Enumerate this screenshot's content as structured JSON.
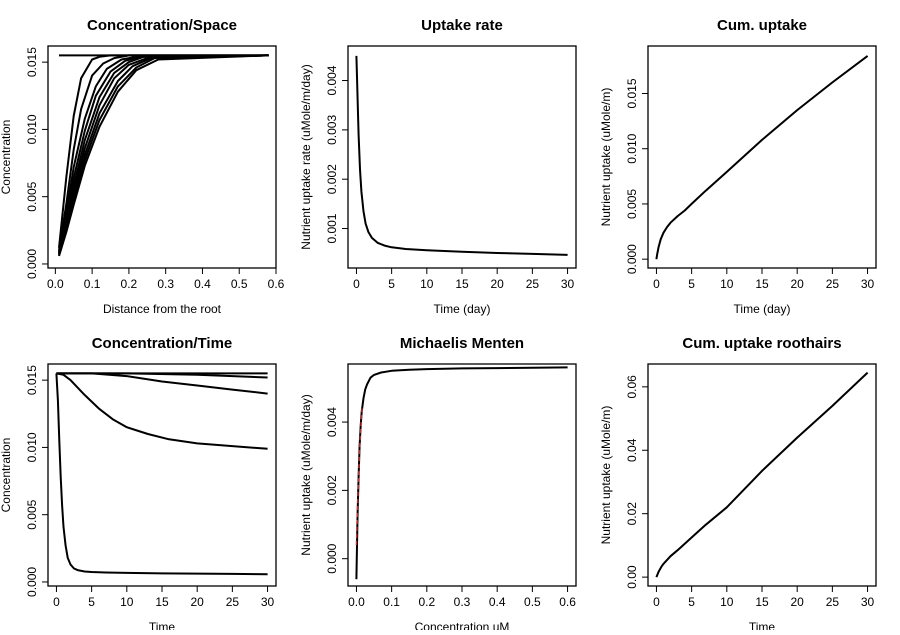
{
  "chart_data": [
    {
      "id": "p1",
      "type": "line",
      "title": "Concentration/Space",
      "xlabel": "Distance from the root",
      "ylabel": "Concentration",
      "xlim": [
        -0.02,
        0.6
      ],
      "ylim": [
        -0.0003,
        0.0162
      ],
      "xticks": [
        0.0,
        0.1,
        0.2,
        0.3,
        0.4,
        0.5,
        0.6
      ],
      "xtick_labels": [
        "0.0",
        "0.1",
        "0.2",
        "0.3",
        "0.4",
        "0.5",
        "0.6"
      ],
      "yticks": [
        0.0,
        0.005,
        0.01,
        0.015
      ],
      "ytick_labels": [
        "0.000",
        "0.005",
        "0.010",
        "0.015"
      ],
      "series": [
        {
          "x": [
            0.01,
            0.58
          ],
          "y": [
            0.0155,
            0.0155
          ]
        },
        {
          "x": [
            0.01,
            0.03,
            0.05,
            0.07,
            0.1,
            0.12,
            0.15,
            0.58
          ],
          "y": [
            0.0012,
            0.0065,
            0.011,
            0.0138,
            0.0152,
            0.0154,
            0.0155,
            0.0155
          ]
        },
        {
          "x": [
            0.01,
            0.03,
            0.05,
            0.07,
            0.1,
            0.13,
            0.16,
            0.2,
            0.58
          ],
          "y": [
            0.001,
            0.0045,
            0.0085,
            0.0115,
            0.014,
            0.0149,
            0.0153,
            0.0155,
            0.0155
          ]
        },
        {
          "x": [
            0.01,
            0.03,
            0.05,
            0.08,
            0.11,
            0.14,
            0.18,
            0.22,
            0.58
          ],
          "y": [
            0.0009,
            0.0038,
            0.0072,
            0.0108,
            0.0132,
            0.0145,
            0.0152,
            0.0154,
            0.0155
          ]
        },
        {
          "x": [
            0.01,
            0.03,
            0.05,
            0.08,
            0.11,
            0.15,
            0.19,
            0.23,
            0.58
          ],
          "y": [
            0.0008,
            0.0034,
            0.0064,
            0.0099,
            0.0125,
            0.0143,
            0.0151,
            0.0154,
            0.0155
          ]
        },
        {
          "x": [
            0.01,
            0.03,
            0.05,
            0.08,
            0.12,
            0.16,
            0.2,
            0.24,
            0.58
          ],
          "y": [
            0.0008,
            0.0031,
            0.0058,
            0.0092,
            0.0124,
            0.0142,
            0.015,
            0.0154,
            0.0155
          ]
        },
        {
          "x": [
            0.01,
            0.03,
            0.05,
            0.08,
            0.12,
            0.16,
            0.2,
            0.25,
            0.58
          ],
          "y": [
            0.0007,
            0.0029,
            0.0054,
            0.0086,
            0.0118,
            0.0138,
            0.0148,
            0.0153,
            0.0155
          ]
        },
        {
          "x": [
            0.01,
            0.03,
            0.05,
            0.08,
            0.12,
            0.17,
            0.21,
            0.26,
            0.58
          ],
          "y": [
            0.0007,
            0.0027,
            0.005,
            0.0081,
            0.0112,
            0.0136,
            0.0147,
            0.0153,
            0.0155
          ]
        },
        {
          "x": [
            0.01,
            0.03,
            0.05,
            0.08,
            0.12,
            0.17,
            0.22,
            0.27,
            0.58
          ],
          "y": [
            0.0006,
            0.0025,
            0.0047,
            0.0077,
            0.0107,
            0.0132,
            0.0146,
            0.0153,
            0.0155
          ]
        },
        {
          "x": [
            0.01,
            0.03,
            0.05,
            0.08,
            0.12,
            0.17,
            0.22,
            0.28,
            0.58
          ],
          "y": [
            0.0006,
            0.0024,
            0.0044,
            0.0073,
            0.0102,
            0.0128,
            0.0144,
            0.0152,
            0.0155
          ]
        }
      ]
    },
    {
      "id": "p2",
      "type": "line",
      "title": "Uptake rate",
      "xlabel": "Time (day)",
      "ylabel": "Nutrient uptake rate (uMole/m/day)",
      "xlim": [
        -1.2,
        31.2
      ],
      "ylim": [
        0.0002,
        0.0047
      ],
      "xticks": [
        0,
        5,
        10,
        15,
        20,
        25,
        30
      ],
      "xtick_labels": [
        "0",
        "5",
        "10",
        "15",
        "20",
        "25",
        "30"
      ],
      "yticks": [
        0.001,
        0.002,
        0.003,
        0.004
      ],
      "ytick_labels": [
        "0.001",
        "0.002",
        "0.003",
        "0.004"
      ],
      "series": [
        {
          "x": [
            0.0,
            0.1,
            0.2,
            0.3,
            0.5,
            0.7,
            1.0,
            1.3,
            1.7,
            2.2,
            3.0,
            4.0,
            5.0,
            7.0,
            10,
            15,
            20,
            25,
            30
          ],
          "y": [
            0.0045,
            0.004,
            0.0034,
            0.0029,
            0.0022,
            0.00175,
            0.00135,
            0.0011,
            0.00093,
            0.00081,
            0.00071,
            0.000655,
            0.00062,
            0.000585,
            0.00056,
            0.00053,
            0.000505,
            0.000485,
            0.000465
          ]
        }
      ]
    },
    {
      "id": "p3",
      "type": "line",
      "title": "Cum. uptake",
      "xlabel": "Time (day)",
      "ylabel": "Nutrient uptake (uMole/m)",
      "xlim": [
        -1.2,
        31.2
      ],
      "ylim": [
        -0.0008,
        0.0193
      ],
      "xticks": [
        0,
        5,
        10,
        15,
        20,
        25,
        30
      ],
      "xtick_labels": [
        "0",
        "5",
        "10",
        "15",
        "20",
        "25",
        "30"
      ],
      "yticks": [
        0.0,
        0.005,
        0.01,
        0.015
      ],
      "ytick_labels": [
        "0.000",
        "0.005",
        "0.010",
        "0.015"
      ],
      "series": [
        {
          "x": [
            0.0,
            0.1,
            0.3,
            0.6,
            1.0,
            1.5,
            2.0,
            3.0,
            4.0,
            5.0,
            7.0,
            10,
            15,
            20,
            25,
            30
          ],
          "y": [
            0.0,
            0.0004,
            0.0011,
            0.0018,
            0.0024,
            0.0029,
            0.0033,
            0.0039,
            0.0044,
            0.005,
            0.0062,
            0.0079,
            0.0108,
            0.0135,
            0.016,
            0.0184
          ]
        }
      ]
    },
    {
      "id": "p4",
      "type": "line",
      "title": "Concentration/Time",
      "xlabel": "Time",
      "ylabel": "Concentration",
      "xlim": [
        -1.2,
        31.2
      ],
      "ylim": [
        -0.0003,
        0.0162
      ],
      "xticks": [
        0,
        5,
        10,
        15,
        20,
        25,
        30
      ],
      "xtick_labels": [
        "0",
        "5",
        "10",
        "15",
        "20",
        "25",
        "30"
      ],
      "yticks": [
        0.0,
        0.005,
        0.01,
        0.015
      ],
      "ytick_labels": [
        "0.000",
        "0.005",
        "0.010",
        "0.015"
      ],
      "series": [
        {
          "x": [
            0,
            30
          ],
          "y": [
            0.0155,
            0.0155
          ]
        },
        {
          "x": [
            0,
            10,
            20,
            30
          ],
          "y": [
            0.0155,
            0.0155,
            0.0154,
            0.0152
          ]
        },
        {
          "x": [
            0,
            5,
            10,
            15,
            20,
            25,
            30
          ],
          "y": [
            0.0155,
            0.0155,
            0.0153,
            0.0149,
            0.0146,
            0.0143,
            0.014
          ]
        },
        {
          "x": [
            0,
            1,
            2,
            4,
            6,
            8,
            10,
            13,
            16,
            20,
            25,
            30
          ],
          "y": [
            0.0155,
            0.0154,
            0.015,
            0.0139,
            0.0129,
            0.0121,
            0.0115,
            0.011,
            0.0106,
            0.0103,
            0.0101,
            0.0099
          ]
        },
        {
          "x": [
            0,
            0.2,
            0.4,
            0.6,
            0.8,
            1.0,
            1.3,
            1.6,
            2.0,
            2.5,
            3.0,
            4.0,
            5.0,
            7.0,
            10,
            15,
            20,
            25,
            30
          ],
          "y": [
            0.0155,
            0.0135,
            0.0105,
            0.0078,
            0.0057,
            0.0041,
            0.0027,
            0.0018,
            0.0013,
            0.001,
            0.00088,
            0.00078,
            0.00074,
            0.0007,
            0.00067,
            0.00064,
            0.00062,
            0.0006,
            0.00058
          ]
        }
      ]
    },
    {
      "id": "p5",
      "type": "line",
      "title": "Michaelis Menten",
      "xlabel": "Concentration uM",
      "ylabel": "Nutrient uptake (uMole/m/day)",
      "xlim": [
        -0.024,
        0.624
      ],
      "ylim": [
        -0.0008,
        0.0057
      ],
      "xticks": [
        0.0,
        0.1,
        0.2,
        0.3,
        0.4,
        0.5,
        0.6
      ],
      "xtick_labels": [
        "0.0",
        "0.1",
        "0.2",
        "0.3",
        "0.4",
        "0.5",
        "0.6"
      ],
      "yticks": [
        0.0,
        0.002,
        0.004
      ],
      "ytick_labels": [
        "0.000",
        "0.002",
        "0.004"
      ],
      "series": [
        {
          "x": [
            0.0,
            0.003,
            0.006,
            0.009,
            0.012,
            0.015,
            0.02,
            0.025,
            0.03,
            0.04,
            0.05,
            0.07,
            0.1,
            0.15,
            0.2,
            0.3,
            0.4,
            0.5,
            0.6
          ],
          "y": [
            -0.0006,
            0.0012,
            0.0024,
            0.0033,
            0.0039,
            0.0043,
            0.0047,
            0.00495,
            0.0051,
            0.0053,
            0.00538,
            0.00545,
            0.0055,
            0.00553,
            0.00555,
            0.00557,
            0.00558,
            0.00559,
            0.0056
          ],
          "color": "#000000"
        },
        {
          "x": [
            0.0,
            0.004,
            0.008,
            0.012,
            0.016
          ],
          "y": [
            0.0004,
            0.0018,
            0.003,
            0.0038,
            0.0044
          ],
          "color": "#d62728",
          "dashed": true
        }
      ]
    },
    {
      "id": "p6",
      "type": "line",
      "title": "Cum. uptake roothairs",
      "xlabel": "Time",
      "ylabel": "Nutrient uptake (uMole/m)",
      "xlim": [
        -1.2,
        31.2
      ],
      "ylim": [
        -0.0028,
        0.0672
      ],
      "xticks": [
        0,
        5,
        10,
        15,
        20,
        25,
        30
      ],
      "xtick_labels": [
        "0",
        "5",
        "10",
        "15",
        "20",
        "25",
        "30"
      ],
      "yticks": [
        0.0,
        0.02,
        0.04,
        0.06
      ],
      "ytick_labels": [
        "0.00",
        "0.02",
        "0.04",
        "0.06"
      ],
      "series": [
        {
          "x": [
            0.0,
            0.3,
            0.7,
            1.0,
            2.0,
            3.0,
            5.0,
            7.0,
            10,
            15,
            20,
            25,
            30
          ],
          "y": [
            0.0,
            0.0017,
            0.0033,
            0.0042,
            0.0066,
            0.0085,
            0.0125,
            0.0165,
            0.022,
            0.0335,
            0.044,
            0.054,
            0.0645
          ]
        }
      ]
    }
  ]
}
